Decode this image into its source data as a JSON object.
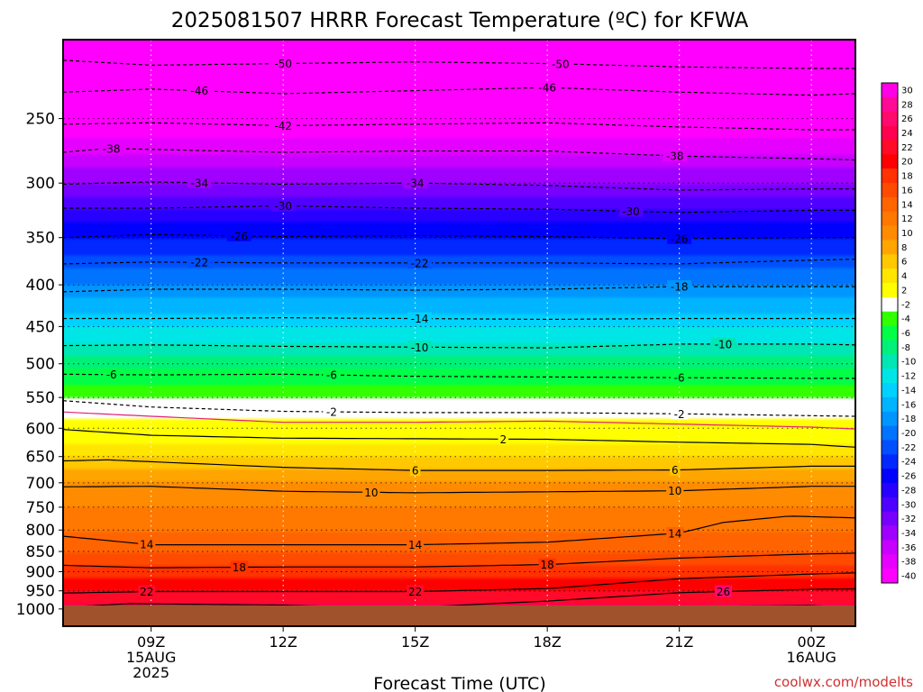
{
  "chart_data": {
    "type": "heatmap",
    "title": "2025081507 HRRR Forecast Temperature (ºC) for KFWA",
    "xlabel": "Forecast Time (UTC)",
    "ylabel": "",
    "y_axis": {
      "scale": "log",
      "unit": "hPa",
      "range": [
        1050,
        200
      ],
      "ticks": [
        250,
        300,
        350,
        400,
        450,
        500,
        550,
        600,
        650,
        700,
        750,
        800,
        850,
        900,
        950,
        1000
      ]
    },
    "x_axis": {
      "range_hours": [
        7,
        25
      ],
      "ticks": [
        {
          "hour": 9,
          "lines": [
            "09Z",
            "15AUG",
            "2025"
          ]
        },
        {
          "hour": 12,
          "lines": [
            "12Z"
          ]
        },
        {
          "hour": 15,
          "lines": [
            "15Z"
          ]
        },
        {
          "hour": 18,
          "lines": [
            "18Z"
          ]
        },
        {
          "hour": 21,
          "lines": [
            "21Z"
          ]
        },
        {
          "hour": 24,
          "lines": [
            "00Z",
            "16AUG"
          ]
        }
      ]
    },
    "surface_pressure_hPa": 990,
    "ground_color": "#a0522d",
    "colorbar": {
      "levels": [
        30,
        28,
        26,
        24,
        22,
        20,
        18,
        16,
        14,
        12,
        10,
        8,
        6,
        4,
        2,
        -2,
        -4,
        -6,
        -8,
        -10,
        -12,
        -14,
        -16,
        -18,
        -20,
        -22,
        -24,
        -26,
        -28,
        -30,
        -32,
        -34,
        -36,
        -38,
        -40
      ],
      "colors": [
        "#ff00e6",
        "#ff0a96",
        "#ff0a6e",
        "#ff0050",
        "#ff0a28",
        "#ff0000",
        "#ff3200",
        "#ff4b00",
        "#ff6400",
        "#ff7800",
        "#ff8c00",
        "#ffa500",
        "#ffc800",
        "#ffe600",
        "#ffff00",
        "#ffffff",
        "#32ff00",
        "#00ff46",
        "#00f07a",
        "#00e6b4",
        "#00e6e6",
        "#00d2ff",
        "#00b4ff",
        "#0096ff",
        "#0073ff",
        "#0050ff",
        "#0028ff",
        "#0000ff",
        "#2800ff",
        "#5000ff",
        "#7800ff",
        "#a000ff",
        "#c800ff",
        "#e600ff",
        "#ff00ff"
      ]
    },
    "temperature_profile": [
      {
        "p": 1000,
        "t": 24
      },
      {
        "p": 950,
        "t": 21
      },
      {
        "p": 900,
        "t": 18
      },
      {
        "p": 850,
        "t": 15
      },
      {
        "p": 800,
        "t": 13
      },
      {
        "p": 750,
        "t": 11
      },
      {
        "p": 700,
        "t": 9
      },
      {
        "p": 650,
        "t": 5
      },
      {
        "p": 600,
        "t": 1
      },
      {
        "p": 550,
        "t": -3
      },
      {
        "p": 500,
        "t": -8
      },
      {
        "p": 450,
        "t": -13
      },
      {
        "p": 400,
        "t": -19
      },
      {
        "p": 350,
        "t": -25
      },
      {
        "p": 300,
        "t": -33
      },
      {
        "p": 250,
        "t": -42
      },
      {
        "p": 200,
        "t": -53
      }
    ],
    "contours": [
      {
        "level": "-50",
        "dashed": true,
        "points": [
          [
            7,
            212
          ],
          [
            9,
            215
          ],
          [
            12,
            214
          ],
          [
            15,
            213
          ],
          [
            18,
            214
          ],
          [
            21,
            216
          ],
          [
            24,
            217
          ],
          [
            25,
            217
          ]
        ],
        "labels": [
          12,
          18.3
        ]
      },
      {
        "level": "-46",
        "dashed": true,
        "points": [
          [
            7,
            232
          ],
          [
            9,
            230
          ],
          [
            12,
            233
          ],
          [
            15,
            231
          ],
          [
            18,
            229
          ],
          [
            21,
            232
          ],
          [
            24,
            234
          ],
          [
            25,
            233
          ]
        ],
        "labels": [
          10.1,
          18
        ]
      },
      {
        "level": "-42",
        "dashed": true,
        "points": [
          [
            7,
            254
          ],
          [
            9,
            253
          ],
          [
            12,
            255
          ],
          [
            15,
            254
          ],
          [
            18,
            253
          ],
          [
            21,
            256
          ],
          [
            24,
            258
          ],
          [
            25,
            258
          ]
        ],
        "labels": [
          12
        ]
      },
      {
        "level": "-38",
        "dashed": true,
        "points": [
          [
            7,
            275
          ],
          [
            8,
            272
          ],
          [
            12,
            275
          ],
          [
            15,
            274
          ],
          [
            18,
            274
          ],
          [
            21,
            278
          ],
          [
            24,
            280
          ],
          [
            25,
            281
          ]
        ],
        "labels": [
          8.1,
          20.9
        ]
      },
      {
        "level": "-34",
        "dashed": true,
        "points": [
          [
            7,
            301
          ],
          [
            9,
            299
          ],
          [
            12,
            301
          ],
          [
            15,
            300
          ],
          [
            18,
            302
          ],
          [
            21,
            306
          ],
          [
            24,
            305
          ],
          [
            25,
            305
          ]
        ],
        "labels": [
          10.1,
          15
        ]
      },
      {
        "level": "-30",
        "dashed": true,
        "points": [
          [
            7,
            322
          ],
          [
            9,
            322
          ],
          [
            12,
            320
          ],
          [
            15,
            322
          ],
          [
            18,
            323
          ],
          [
            21,
            326
          ],
          [
            24,
            324
          ],
          [
            25,
            324
          ]
        ],
        "labels": [
          12,
          19.9
        ]
      },
      {
        "level": "-26",
        "dashed": true,
        "points": [
          [
            7,
            350
          ],
          [
            9,
            347
          ],
          [
            12,
            349
          ],
          [
            15,
            348
          ],
          [
            18,
            349
          ],
          [
            21,
            351
          ],
          [
            24,
            350
          ],
          [
            25,
            350
          ]
        ],
        "labels": [
          11,
          21
        ]
      },
      {
        "level": "-22",
        "dashed": true,
        "points": [
          [
            7,
            377
          ],
          [
            9,
            375
          ],
          [
            12,
            376
          ],
          [
            15,
            376
          ],
          [
            18,
            376
          ],
          [
            21,
            377
          ],
          [
            24,
            373
          ],
          [
            25,
            372
          ]
        ],
        "labels": [
          10.1,
          15.1
        ]
      },
      {
        "level": "-18",
        "dashed": true,
        "points": [
          [
            7,
            408
          ],
          [
            9,
            405
          ],
          [
            12,
            405
          ],
          [
            15,
            406
          ],
          [
            18,
            405
          ],
          [
            21,
            402
          ],
          [
            24,
            402
          ],
          [
            25,
            402
          ]
        ],
        "labels": [
          21
        ]
      },
      {
        "level": "-14",
        "dashed": true,
        "points": [
          [
            7,
            440
          ],
          [
            9,
            440
          ],
          [
            12,
            439
          ],
          [
            15,
            440
          ],
          [
            18,
            441
          ],
          [
            21,
            440
          ],
          [
            24,
            440
          ],
          [
            25,
            440
          ]
        ],
        "labels": [
          15.1
        ]
      },
      {
        "level": "-10",
        "dashed": true,
        "points": [
          [
            7,
            475
          ],
          [
            9,
            474
          ],
          [
            12,
            476
          ],
          [
            15,
            477
          ],
          [
            18,
            478
          ],
          [
            21,
            473
          ],
          [
            24,
            473
          ],
          [
            25,
            474
          ]
        ],
        "labels": [
          15.1,
          22
        ]
      },
      {
        "level": "-6",
        "dashed": true,
        "points": [
          [
            7,
            515
          ],
          [
            9,
            516
          ],
          [
            12,
            515
          ],
          [
            15,
            518
          ],
          [
            18,
            519
          ],
          [
            21,
            520
          ],
          [
            24,
            521
          ],
          [
            25,
            521
          ]
        ],
        "labels": [
          8.1,
          13.1,
          21
        ]
      },
      {
        "level": "-2",
        "dashed": true,
        "points": [
          [
            7,
            555
          ],
          [
            9,
            565
          ],
          [
            12,
            572
          ],
          [
            15,
            574
          ],
          [
            18,
            574
          ],
          [
            21,
            576
          ],
          [
            24,
            579
          ],
          [
            25,
            580
          ]
        ],
        "labels": [
          13.1,
          21
        ]
      },
      {
        "level": "",
        "dashed": false,
        "color": "#e0207a",
        "points": [
          [
            7,
            573
          ],
          [
            9,
            580
          ],
          [
            12,
            590
          ],
          [
            15,
            590
          ],
          [
            18,
            588
          ],
          [
            21,
            593
          ],
          [
            24,
            598
          ],
          [
            25,
            601
          ]
        ],
        "labels": []
      },
      {
        "level": "2",
        "dashed": false,
        "points": [
          [
            7,
            602
          ],
          [
            9,
            612
          ],
          [
            12,
            617
          ],
          [
            15,
            618
          ],
          [
            18,
            619
          ],
          [
            21,
            624
          ],
          [
            24,
            628
          ],
          [
            25,
            633
          ]
        ],
        "labels": [
          17
        ]
      },
      {
        "level": "6",
        "dashed": false,
        "points": [
          [
            7,
            658
          ],
          [
            8,
            656
          ],
          [
            12,
            670
          ],
          [
            15,
            676
          ],
          [
            18,
            676
          ],
          [
            21,
            675
          ],
          [
            24,
            668
          ],
          [
            25,
            668
          ]
        ],
        "labels": [
          15,
          20.9
        ]
      },
      {
        "level": "10",
        "dashed": false,
        "points": [
          [
            7,
            708
          ],
          [
            9,
            707
          ],
          [
            12,
            717
          ],
          [
            15,
            720
          ],
          [
            18,
            718
          ],
          [
            21,
            716
          ],
          [
            24,
            707
          ],
          [
            25,
            707
          ]
        ],
        "labels": [
          14,
          20.9
        ]
      },
      {
        "level": "14",
        "dashed": false,
        "points": [
          [
            7,
            814
          ],
          [
            9,
            834
          ],
          [
            12,
            834
          ],
          [
            15,
            834
          ],
          [
            18,
            828
          ],
          [
            21,
            807
          ],
          [
            22,
            783
          ],
          [
            23.5,
            769
          ],
          [
            25,
            773
          ]
        ],
        "labels": [
          8.9,
          15,
          20.9
        ]
      },
      {
        "level": "18",
        "dashed": false,
        "points": [
          [
            7,
            884
          ],
          [
            9,
            890
          ],
          [
            12,
            888
          ],
          [
            15,
            888
          ],
          [
            18,
            882
          ],
          [
            21,
            866
          ],
          [
            24,
            856
          ],
          [
            25,
            854
          ]
        ],
        "labels": [
          11,
          18
        ]
      },
      {
        "level": "22",
        "dashed": false,
        "points": [
          [
            7,
            956
          ],
          [
            9,
            952
          ],
          [
            12,
            952
          ],
          [
            15,
            952
          ],
          [
            18,
            944
          ],
          [
            21,
            918
          ],
          [
            24,
            906
          ],
          [
            25,
            903
          ]
        ],
        "labels": [
          8.9,
          15
        ]
      },
      {
        "level": "26",
        "dashed": false,
        "points": [
          [
            7,
            995
          ],
          [
            8.5,
            985
          ],
          [
            12,
            989
          ],
          [
            13.2,
            993
          ]
        ],
        "labels": []
      },
      {
        "level": "26",
        "dashed": false,
        "points": [
          [
            15,
            995
          ],
          [
            18,
            978
          ],
          [
            21,
            955
          ],
          [
            24,
            946
          ],
          [
            25,
            945
          ]
        ],
        "labels": [
          22
        ]
      },
      {
        "level": "",
        "dashed": false,
        "points": [
          [
            19,
            995
          ],
          [
            21,
            993
          ],
          [
            24,
            990
          ],
          [
            24.7,
            995
          ]
        ],
        "labels": []
      }
    ]
  },
  "credit": "coolwx.com/modelts"
}
